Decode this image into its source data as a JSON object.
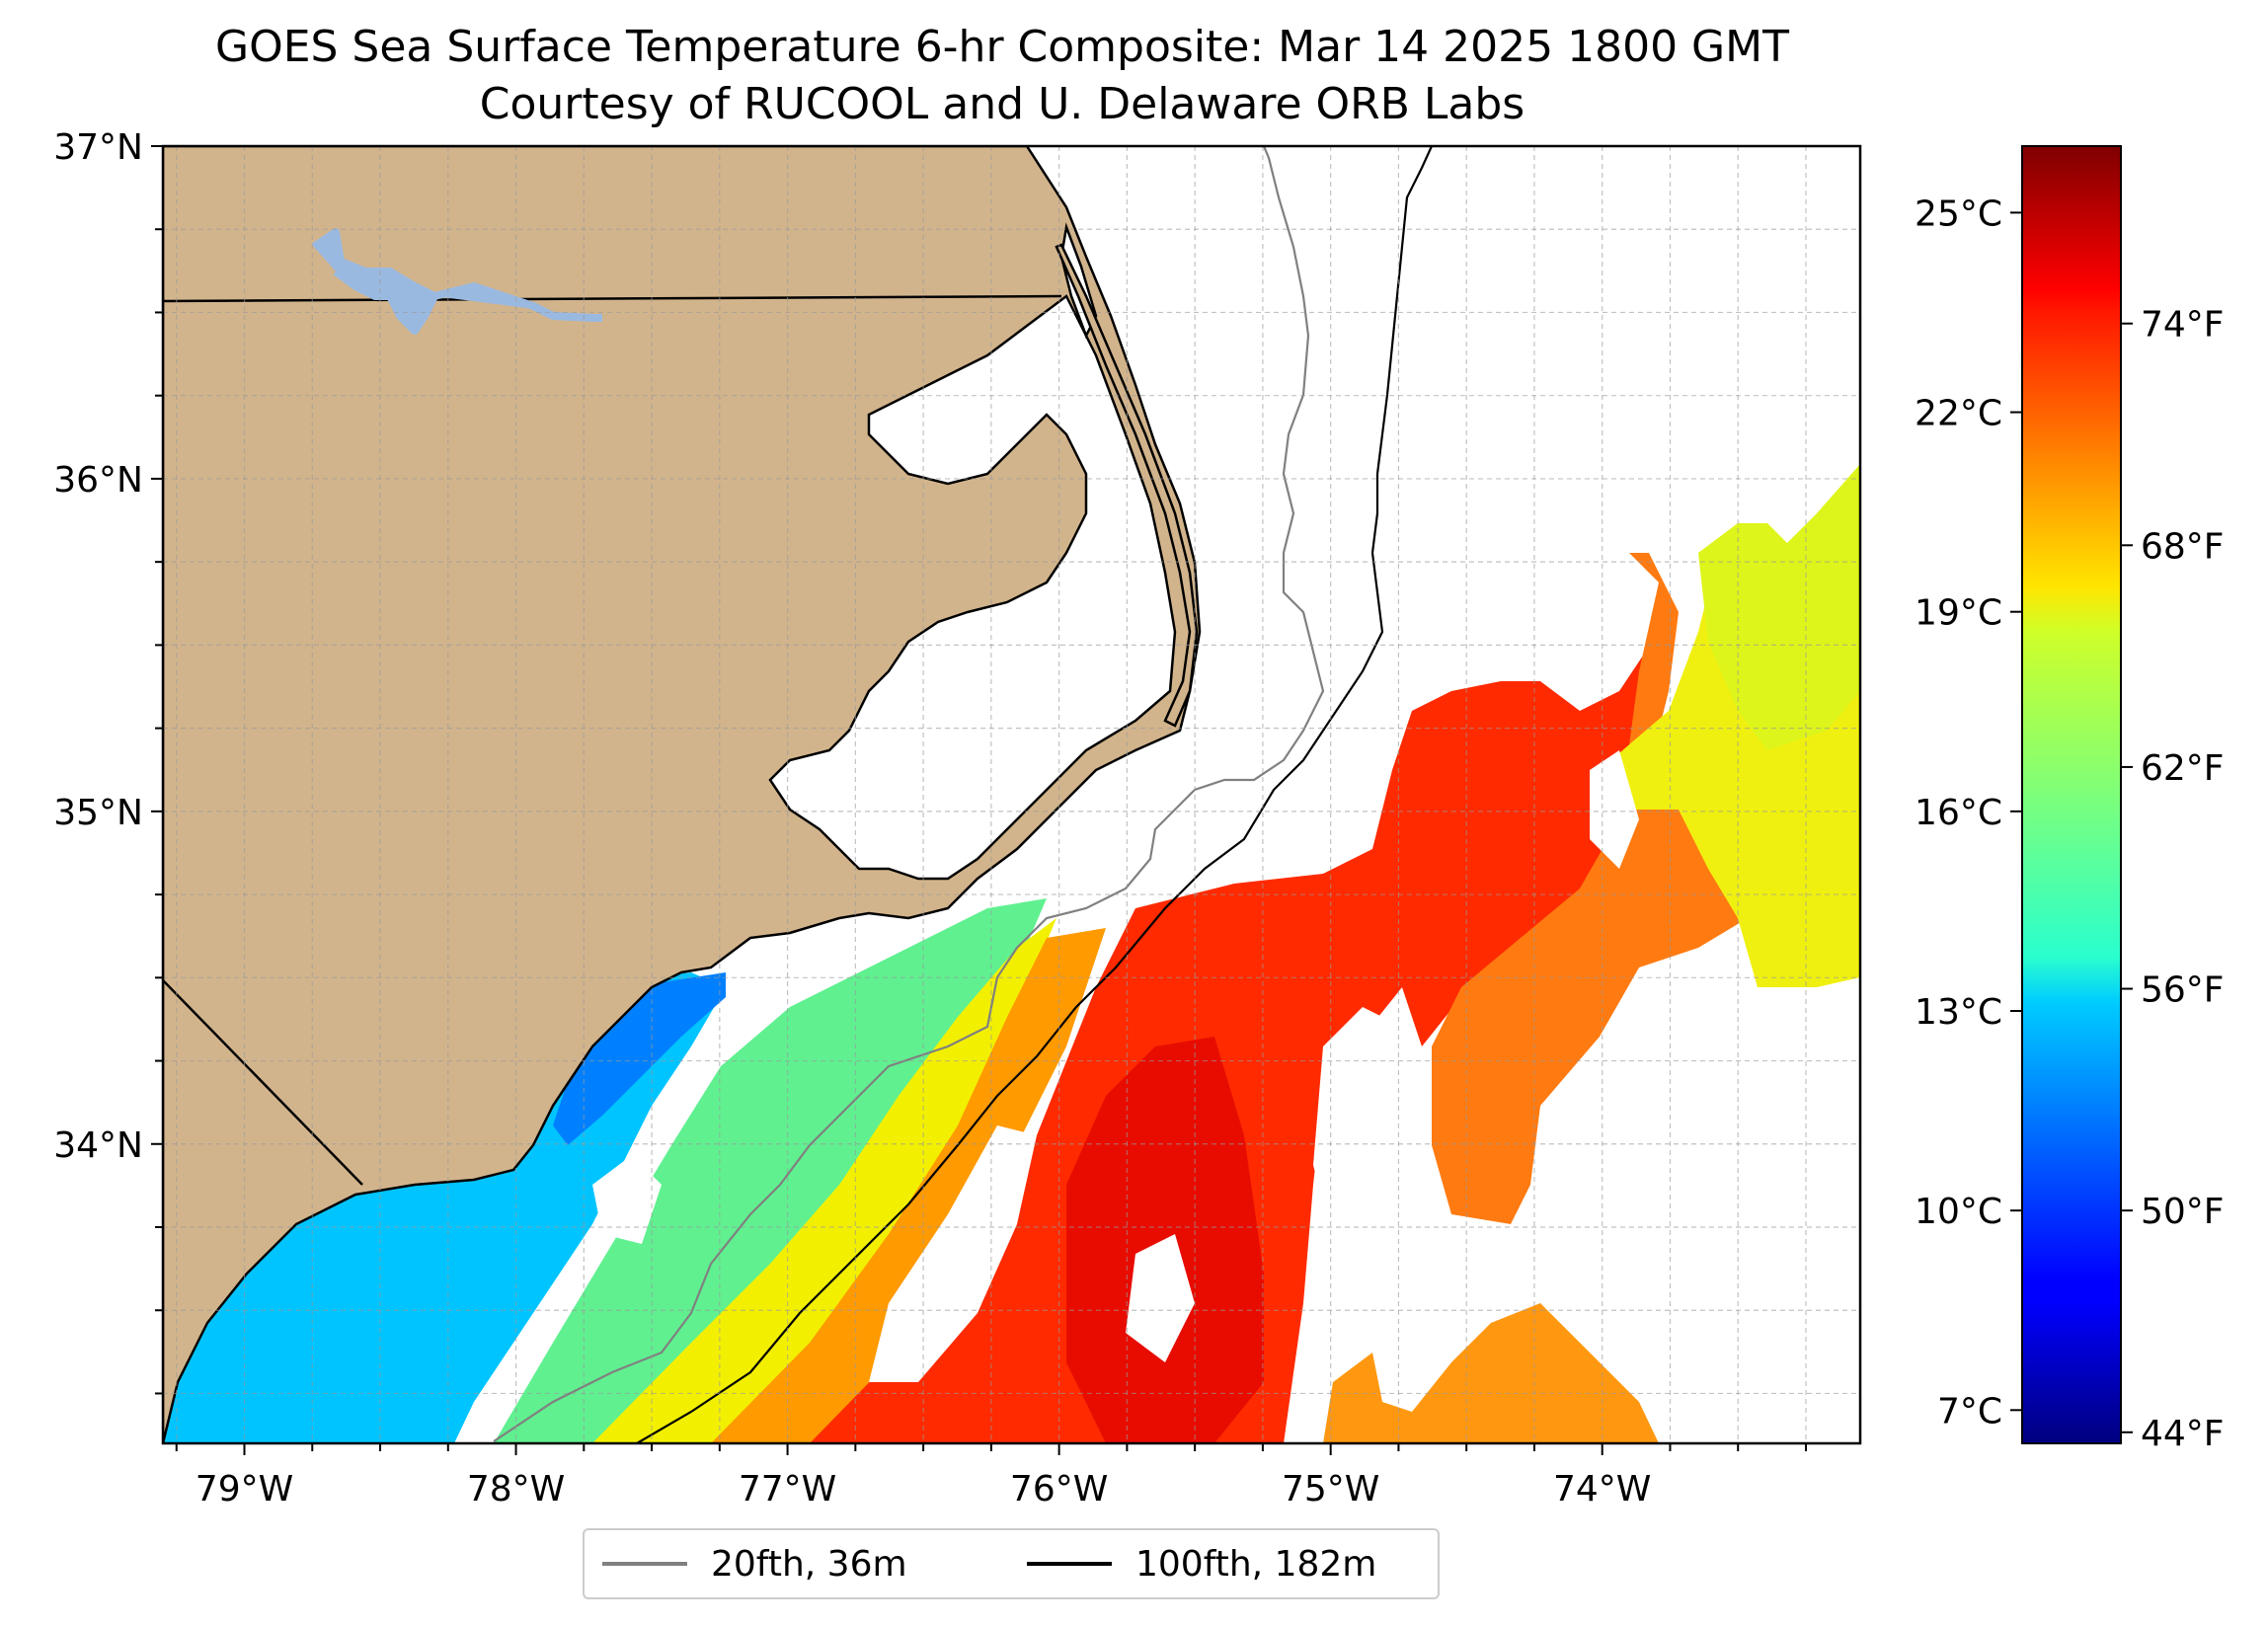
{
  "title": {
    "line1": "GOES Sea Surface Temperature 6-hr Composite: Mar 14 2025 1800 GMT",
    "line2": "Courtesy of RUCOOL and U. Delaware ORB Labs"
  },
  "map": {
    "extent": {
      "lon_min": -79.3,
      "lon_max": -73.05,
      "lat_min": 33.1,
      "lat_max": 37.0
    },
    "lon_ticks": [
      {
        "value": -79,
        "label": "79°W"
      },
      {
        "value": -78,
        "label": "78°W"
      },
      {
        "value": -77,
        "label": "77°W"
      },
      {
        "value": -76,
        "label": "76°W"
      },
      {
        "value": -75,
        "label": "75°W"
      },
      {
        "value": -74,
        "label": "74°W"
      }
    ],
    "lat_ticks": [
      {
        "value": 37,
        "label": "37°N"
      },
      {
        "value": 36,
        "label": "36°N"
      },
      {
        "value": 35,
        "label": "35°N"
      },
      {
        "value": 34,
        "label": "34°N"
      }
    ],
    "colors": {
      "land": "#d2b48c",
      "coastline": "#000000",
      "lake": "#9ab9e0",
      "isobath_20fth": "#808080",
      "isobath_100fth": "#000000",
      "grid": "#9a9a9a"
    },
    "grid": true
  },
  "legend": {
    "items": [
      {
        "label": "20fth, 36m",
        "color": "#808080"
      },
      {
        "label": "100fth, 182m",
        "color": "#000000"
      }
    ]
  },
  "colorbar": {
    "colormap": "jet",
    "range_c": [
      6.5,
      26.0
    ],
    "celsius_ticks": [
      {
        "value": 7,
        "label": "7°C"
      },
      {
        "value": 10,
        "label": "10°C"
      },
      {
        "value": 13,
        "label": "13°C"
      },
      {
        "value": 16,
        "label": "16°C"
      },
      {
        "value": 19,
        "label": "19°C"
      },
      {
        "value": 22,
        "label": "22°C"
      },
      {
        "value": 25,
        "label": "25°C"
      }
    ],
    "fahrenheit_ticks": [
      {
        "value": 44,
        "label": "44°F"
      },
      {
        "value": 50,
        "label": "50°F"
      },
      {
        "value": 56,
        "label": "56°F"
      },
      {
        "value": 62,
        "label": "62°F"
      },
      {
        "value": 68,
        "label": "68°F"
      },
      {
        "value": 74,
        "label": "74°F"
      }
    ]
  }
}
